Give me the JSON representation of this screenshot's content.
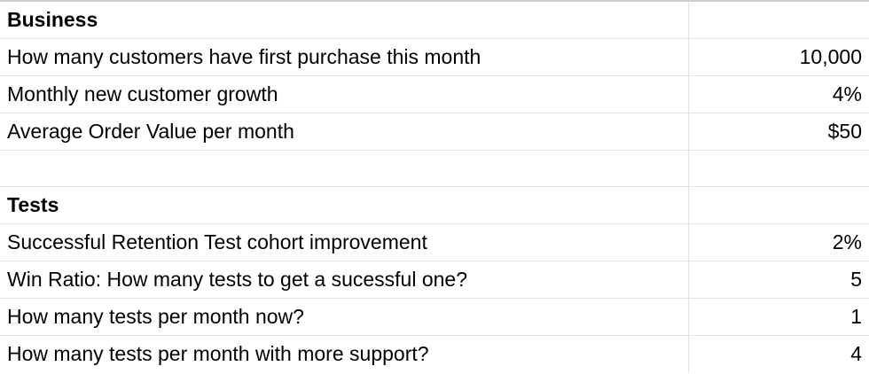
{
  "colors": {
    "gridline": "#e2e2e2",
    "top_border": "#cfcfcf",
    "text": "#000000",
    "background": "#ffffff"
  },
  "rows": [
    {
      "label": "Business",
      "value": ""
    },
    {
      "label": "How many customers have first purchase this month",
      "value": "10,000"
    },
    {
      "label": "Monthly new customer growth",
      "value": "4%"
    },
    {
      "label": "Average Order Value per month",
      "value": "$50"
    },
    {
      "label": "",
      "value": ""
    },
    {
      "label": "Tests",
      "value": ""
    },
    {
      "label": "Successful Retention Test cohort improvement",
      "value": "2%"
    },
    {
      "label": "Win Ratio: How many tests to get a sucessful one?",
      "value": "5"
    },
    {
      "label": "How many tests per month now?",
      "value": "1"
    },
    {
      "label": "How many tests per month with more support?",
      "value": "4"
    }
  ]
}
